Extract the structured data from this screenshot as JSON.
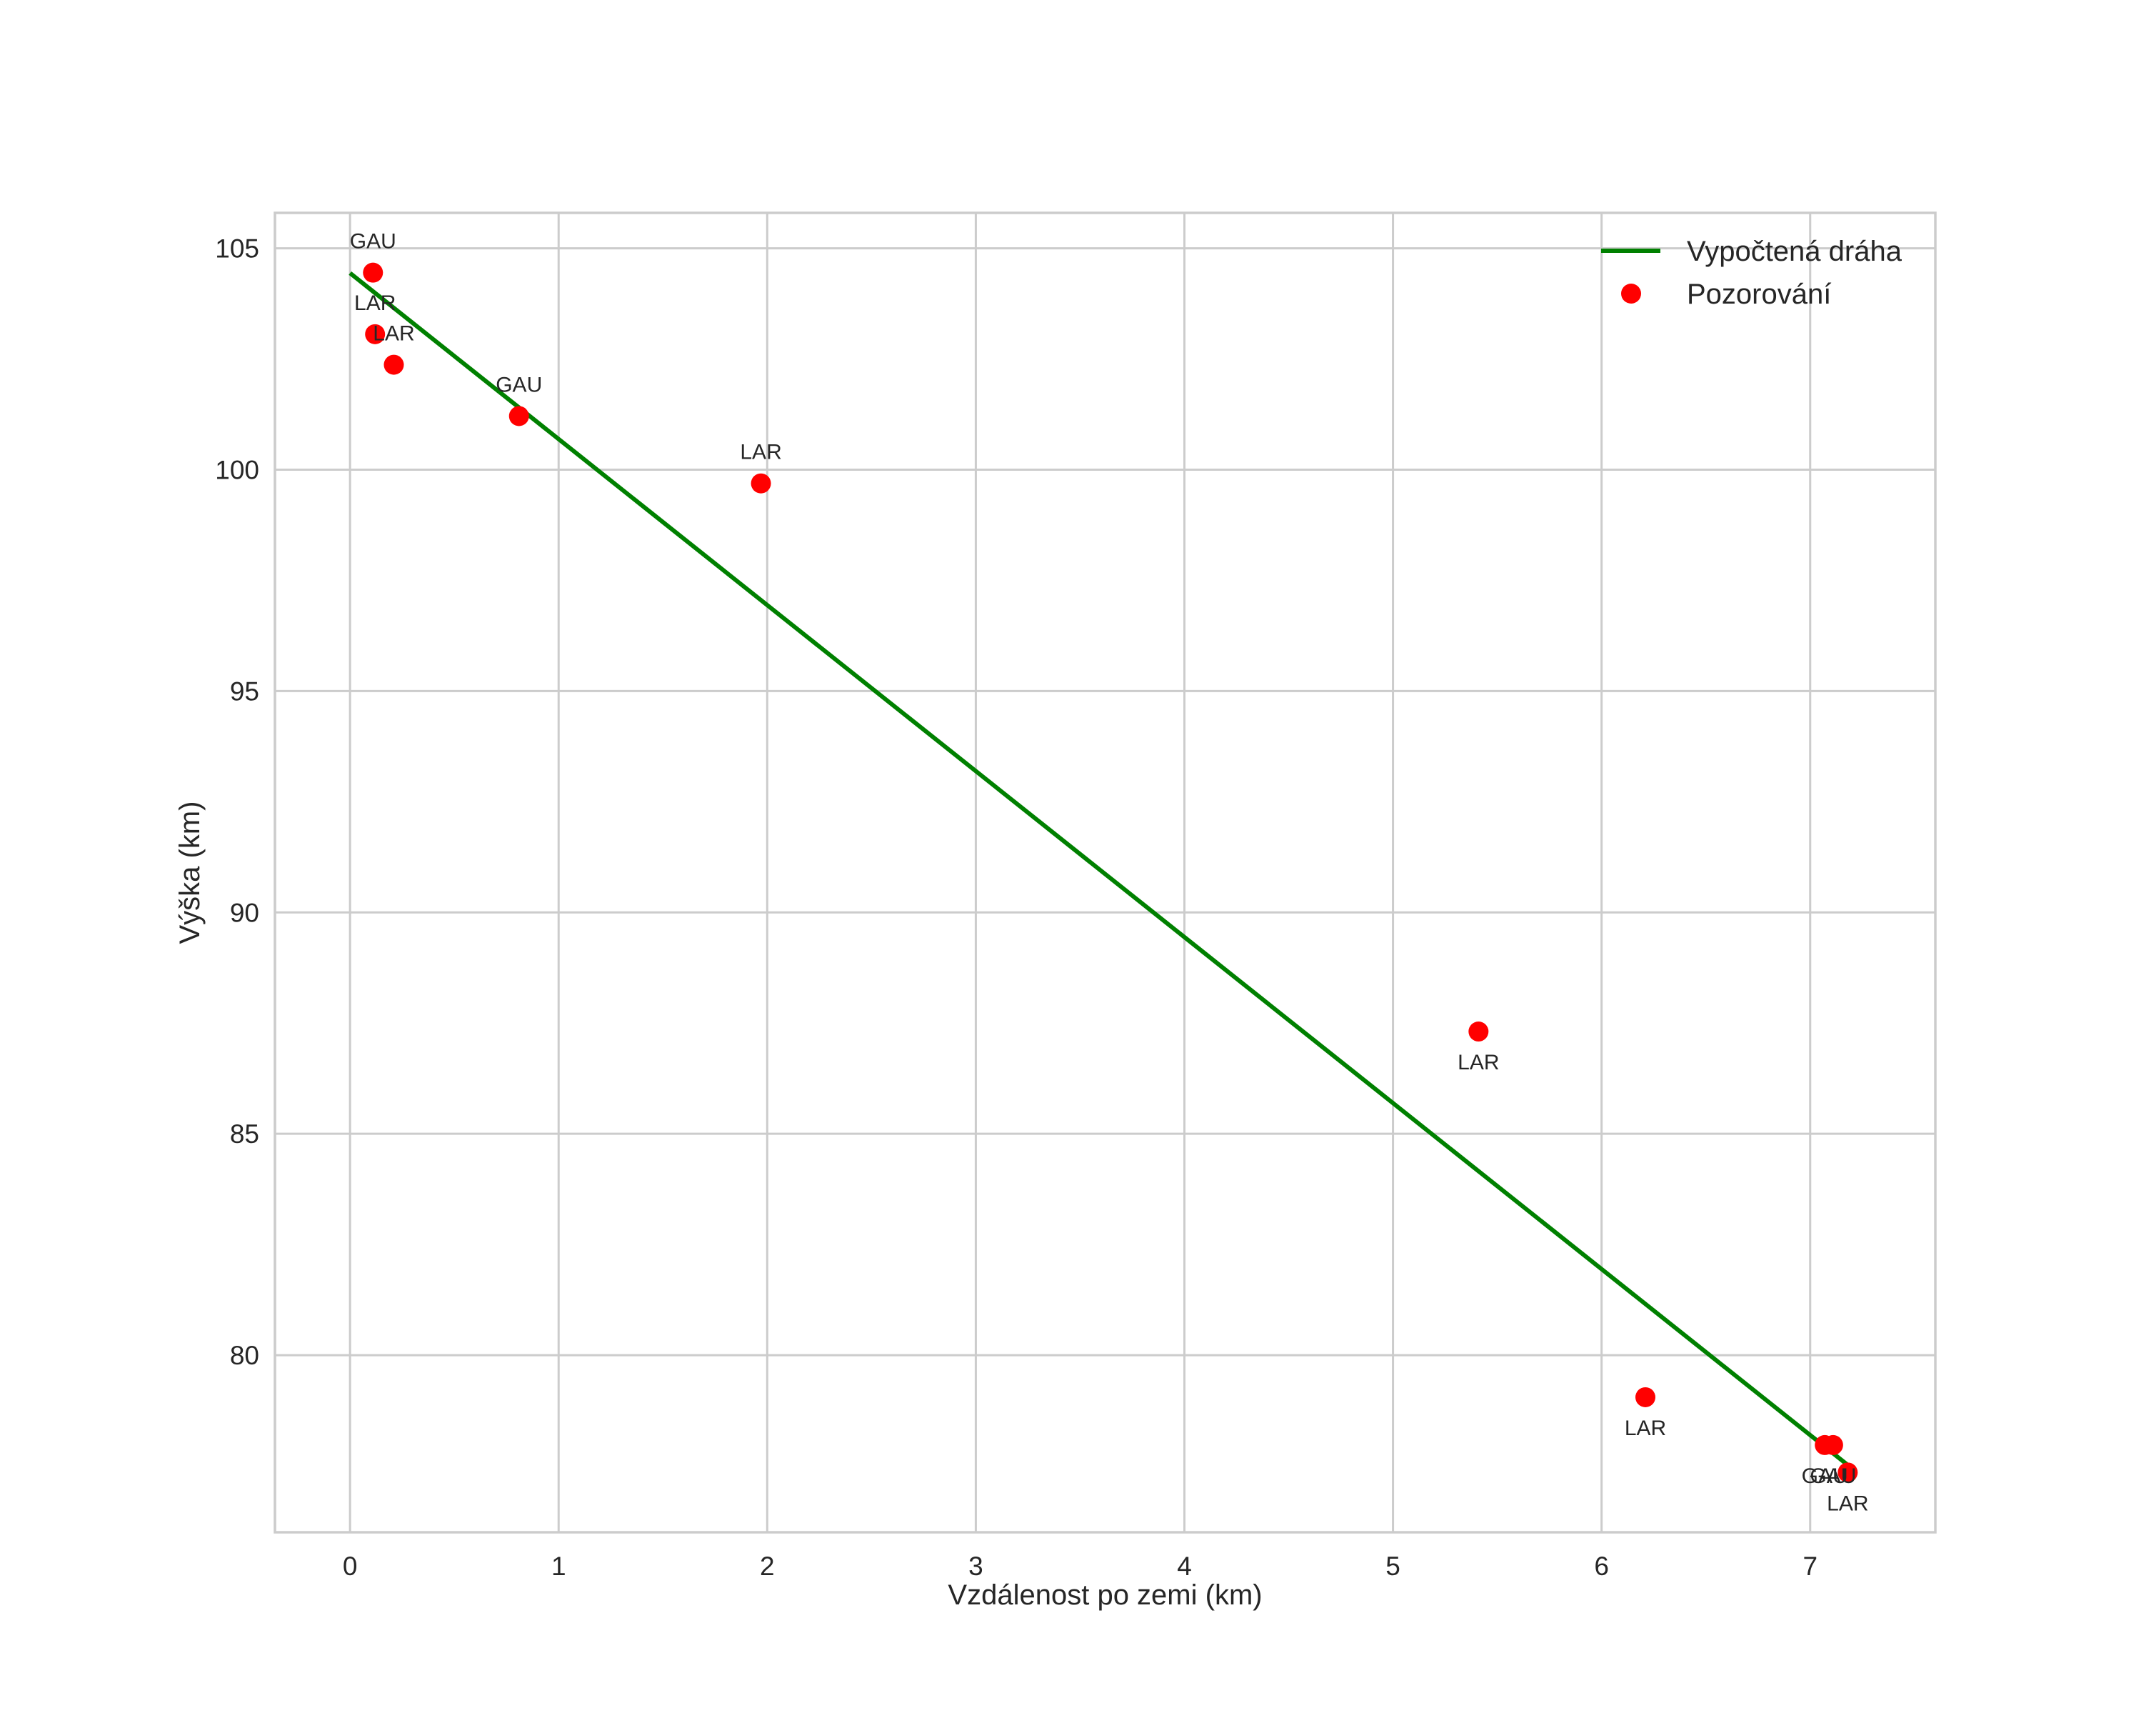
{
  "chart_data": {
    "type": "scatter",
    "title": "",
    "xlabel": "Vzdálenost po zemi (km)",
    "ylabel": "Výška (km)",
    "xlim": [
      -0.36,
      7.6
    ],
    "ylim": [
      76.0,
      105.8
    ],
    "grid": true,
    "legend_position": "upper right",
    "x_ticks": [
      0,
      1,
      2,
      3,
      4,
      5,
      6,
      7
    ],
    "y_ticks": [
      80,
      85,
      90,
      95,
      100,
      105
    ],
    "x_tick_labels": [
      "0",
      "1",
      "2",
      "3",
      "4",
      "5",
      "6",
      "7"
    ],
    "y_tick_labels": [
      "80",
      "85",
      "90",
      "95",
      "100",
      "105"
    ],
    "series": [
      {
        "name": "Vypočtená dráha",
        "type": "line",
        "color": "#008000",
        "x": [
          0.0,
          7.22
        ],
        "y": [
          104.44,
          77.37
        ]
      },
      {
        "name": "Pozorování",
        "type": "scatter",
        "color": "#ff0000",
        "points": [
          {
            "x": 0.11,
            "y": 104.45,
            "label": "GAU",
            "label_pos": "above"
          },
          {
            "x": 0.12,
            "y": 103.06,
            "label": "LAR",
            "label_pos": "above"
          },
          {
            "x": 0.21,
            "y": 102.37,
            "label": "LAR",
            "label_pos": "above"
          },
          {
            "x": 0.81,
            "y": 101.21,
            "label": "GAU",
            "label_pos": "above"
          },
          {
            "x": 1.97,
            "y": 99.69,
            "label": "LAR",
            "label_pos": "above"
          },
          {
            "x": 5.41,
            "y": 87.31,
            "label": "LAR",
            "label_pos": "below"
          },
          {
            "x": 6.21,
            "y": 79.05,
            "label": "LAR",
            "label_pos": "below"
          },
          {
            "x": 7.07,
            "y": 77.97,
            "label": "GAU",
            "label_pos": "below"
          },
          {
            "x": 7.11,
            "y": 77.97,
            "label": "GAU",
            "label_pos": "below"
          },
          {
            "x": 7.18,
            "y": 77.35,
            "label": "LAR",
            "label_pos": "below"
          }
        ]
      }
    ],
    "legend": [
      {
        "label": "Vypočtená dráha",
        "kind": "line",
        "color": "#008000"
      },
      {
        "label": "Pozorování",
        "kind": "marker",
        "color": "#ff0000"
      }
    ]
  },
  "colors": {
    "grid": "#cccccc",
    "text": "#262626",
    "background": "#ffffff"
  }
}
